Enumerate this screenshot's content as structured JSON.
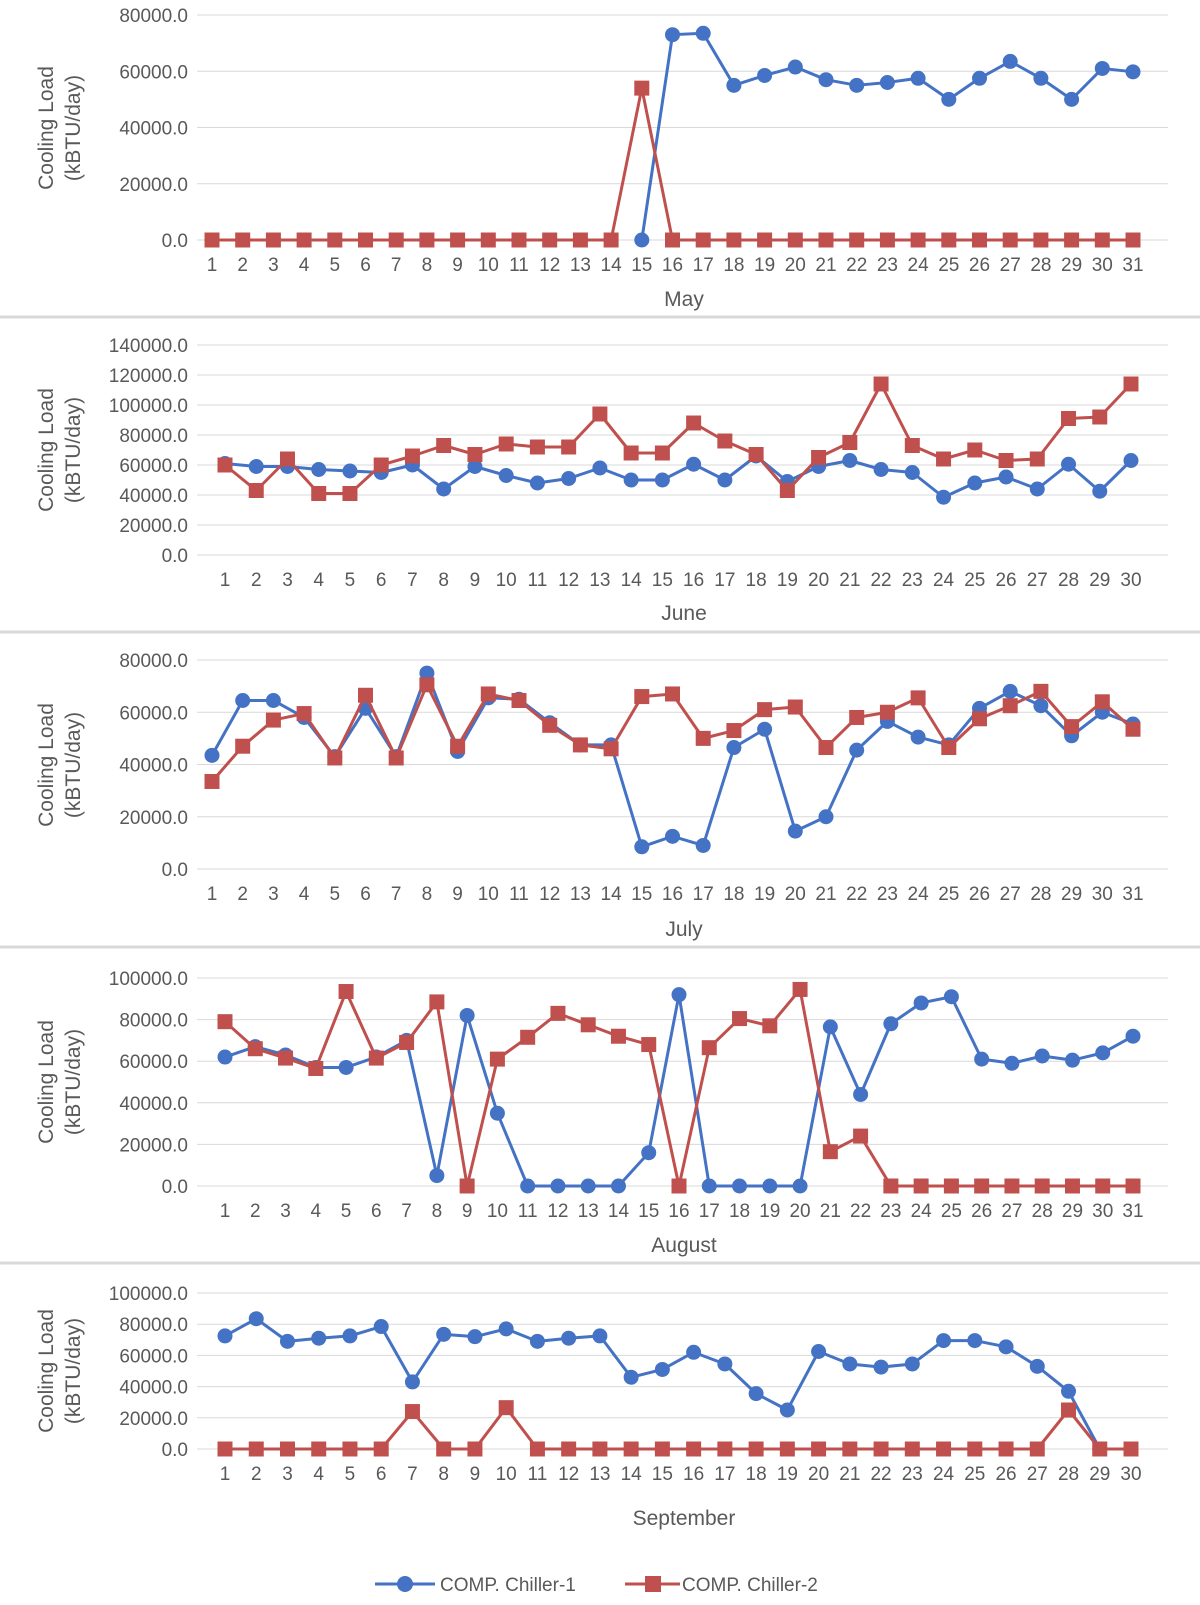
{
  "colors": {
    "series1": "#4472C4",
    "series2": "#C0504D",
    "grid": "#D9D9D9",
    "text": "#595959",
    "divider": "#D9D9D9"
  },
  "legend": {
    "series1_label": "COMP. Chiller-1",
    "series2_label": "COMP. Chiller-2",
    "placement": "bottom"
  },
  "chart_data": [
    {
      "type": "line",
      "xlabel": "May",
      "ylabel_line1": "Cooling Load",
      "ylabel_line2": "(kBTU/day)",
      "ylim": [
        0,
        80000
      ],
      "yticks": [
        "0.0",
        "20000.0",
        "40000.0",
        "60000.0",
        "80000.0"
      ],
      "grid": true,
      "categories": [
        "1",
        "2",
        "3",
        "4",
        "5",
        "6",
        "7",
        "8",
        "9",
        "10",
        "11",
        "12",
        "13",
        "14",
        "15",
        "16",
        "17",
        "18",
        "19",
        "20",
        "21",
        "22",
        "23",
        "24",
        "25",
        "26",
        "27",
        "28",
        "29",
        "30",
        "31"
      ],
      "series": [
        {
          "name": "COMP. Chiller-1",
          "values": [
            null,
            null,
            null,
            null,
            null,
            null,
            null,
            null,
            null,
            null,
            null,
            null,
            null,
            null,
            0,
            73000,
            73500,
            55000,
            58500,
            61500,
            57000,
            55000,
            56000,
            57500,
            50000,
            57500,
            63500,
            57500,
            50000,
            61000,
            59800
          ]
        },
        {
          "name": "COMP. Chiller-2",
          "values": [
            0,
            0,
            0,
            0,
            0,
            0,
            0,
            0,
            0,
            0,
            0,
            0,
            0,
            0,
            54000,
            0,
            0,
            0,
            0,
            0,
            0,
            0,
            0,
            0,
            0,
            0,
            0,
            0,
            0,
            0,
            0
          ]
        }
      ]
    },
    {
      "type": "line",
      "xlabel": "June",
      "ylabel_line1": "Cooling Load",
      "ylabel_line2": "(kBTU/day)",
      "ylim": [
        0,
        140000
      ],
      "yticks": [
        "0.0",
        "20000.0",
        "40000.0",
        "60000.0",
        "80000.0",
        "100000.0",
        "120000.0",
        "140000.0"
      ],
      "grid": true,
      "categories": [
        "1",
        "2",
        "3",
        "4",
        "5",
        "6",
        "7",
        "8",
        "9",
        "10",
        "11",
        "12",
        "13",
        "14",
        "15",
        "16",
        "17",
        "18",
        "19",
        "20",
        "21",
        "22",
        "23",
        "24",
        "25",
        "26",
        "27",
        "28",
        "29",
        "30"
      ],
      "series": [
        {
          "name": "COMP. Chiller-1",
          "values": [
            61000,
            59000,
            59000,
            57000,
            56000,
            55000,
            60000,
            44000,
            59000,
            53000,
            48000,
            51000,
            58000,
            50000,
            50000,
            60500,
            50000,
            66000,
            49000,
            59000,
            63000,
            57000,
            55000,
            38500,
            48000,
            52000,
            44000,
            60500,
            42500,
            63000
          ]
        },
        {
          "name": "COMP. Chiller-2",
          "values": [
            60000,
            43000,
            64000,
            41000,
            41000,
            60000,
            66000,
            73000,
            67000,
            74000,
            72000,
            72000,
            94000,
            68000,
            68000,
            88000,
            76000,
            67000,
            43000,
            65000,
            75000,
            114000,
            73000,
            64000,
            70000,
            63000,
            64000,
            91000,
            92000,
            114000
          ]
        }
      ]
    },
    {
      "type": "line",
      "xlabel": "July",
      "ylabel_line1": "Cooling Load",
      "ylabel_line2": "(kBTU/day)",
      "ylim": [
        0,
        80000
      ],
      "yticks": [
        "0.0",
        "20000.0",
        "40000.0",
        "60000.0",
        "80000.0"
      ],
      "grid": true,
      "categories": [
        "1",
        "2",
        "3",
        "4",
        "5",
        "6",
        "7",
        "8",
        "9",
        "10",
        "11",
        "12",
        "13",
        "14",
        "15",
        "16",
        "17",
        "18",
        "19",
        "20",
        "21",
        "22",
        "23",
        "24",
        "25",
        "26",
        "27",
        "28",
        "29",
        "30",
        "31"
      ],
      "series": [
        {
          "name": "COMP. Chiller-1",
          "values": [
            43500,
            64500,
            64500,
            58000,
            43000,
            61500,
            43000,
            75000,
            45000,
            65500,
            65000,
            56000,
            47500,
            47500,
            8500,
            12500,
            9000,
            46500,
            53500,
            14500,
            20000,
            45500,
            56500,
            50500,
            47500,
            61500,
            68000,
            62500,
            51000,
            60000,
            55500
          ]
        },
        {
          "name": "COMP. Chiller-2",
          "values": [
            33500,
            47000,
            57000,
            59500,
            42500,
            66500,
            42500,
            70500,
            47000,
            67000,
            64500,
            55000,
            47500,
            46000,
            66000,
            67000,
            50000,
            53000,
            61000,
            62000,
            46500,
            58000,
            60000,
            65500,
            46500,
            57500,
            62500,
            68000,
            54500,
            64000,
            53500
          ]
        }
      ]
    },
    {
      "type": "line",
      "xlabel": "August",
      "ylabel_line1": "Cooling Load",
      "ylabel_line2": "(kBTU/day)",
      "ylim": [
        0,
        100000
      ],
      "yticks": [
        "0.0",
        "20000.0",
        "40000.0",
        "60000.0",
        "80000.0",
        "100000.0"
      ],
      "grid": true,
      "categories": [
        "1",
        "2",
        "3",
        "4",
        "5",
        "6",
        "7",
        "8",
        "9",
        "10",
        "11",
        "12",
        "13",
        "14",
        "15",
        "16",
        "17",
        "18",
        "19",
        "20",
        "21",
        "22",
        "23",
        "24",
        "25",
        "26",
        "27",
        "28",
        "29",
        "30",
        "31"
      ],
      "series": [
        {
          "name": "COMP. Chiller-1",
          "values": [
            62000,
            67000,
            63000,
            57000,
            57000,
            62000,
            70000,
            5000,
            82000,
            35000,
            0,
            0,
            0,
            0,
            16000,
            92000,
            0,
            0,
            0,
            0,
            76500,
            44000,
            78000,
            88000,
            91000,
            61000,
            59000,
            62500,
            60500,
            64000,
            72000
          ]
        },
        {
          "name": "COMP. Chiller-2",
          "values": [
            79000,
            66000,
            61500,
            56500,
            93500,
            61500,
            69000,
            88500,
            0,
            61000,
            71500,
            83000,
            77500,
            72000,
            68000,
            0,
            66500,
            80500,
            77000,
            94500,
            16500,
            24000,
            0,
            0,
            0,
            0,
            0,
            0,
            0,
            0,
            0
          ]
        }
      ]
    },
    {
      "type": "line",
      "xlabel": "September",
      "ylabel_line1": "Cooling Load",
      "ylabel_line2": "(kBTU/day)",
      "ylim": [
        0,
        100000
      ],
      "yticks": [
        "0.0",
        "20000.0",
        "40000.0",
        "60000.0",
        "80000.0",
        "100000.0"
      ],
      "grid": true,
      "categories": [
        "1",
        "2",
        "3",
        "4",
        "5",
        "6",
        "7",
        "8",
        "9",
        "10",
        "11",
        "12",
        "13",
        "14",
        "15",
        "16",
        "17",
        "18",
        "19",
        "20",
        "21",
        "22",
        "23",
        "24",
        "25",
        "26",
        "27",
        "28",
        "29",
        "30"
      ],
      "series": [
        {
          "name": "COMP. Chiller-1",
          "values": [
            72500,
            83500,
            69000,
            71000,
            72500,
            78500,
            43000,
            73500,
            72000,
            77000,
            69000,
            71000,
            72500,
            46000,
            51000,
            62000,
            54500,
            35500,
            25000,
            62500,
            54500,
            52500,
            54500,
            69500,
            69500,
            65500,
            53000,
            37000,
            0,
            0
          ]
        },
        {
          "name": "COMP. Chiller-2",
          "values": [
            0,
            0,
            0,
            0,
            0,
            0,
            24000,
            0,
            0,
            26500,
            0,
            0,
            0,
            0,
            0,
            0,
            0,
            0,
            0,
            0,
            0,
            0,
            0,
            0,
            0,
            0,
            0,
            25000,
            0,
            0
          ]
        }
      ]
    }
  ]
}
